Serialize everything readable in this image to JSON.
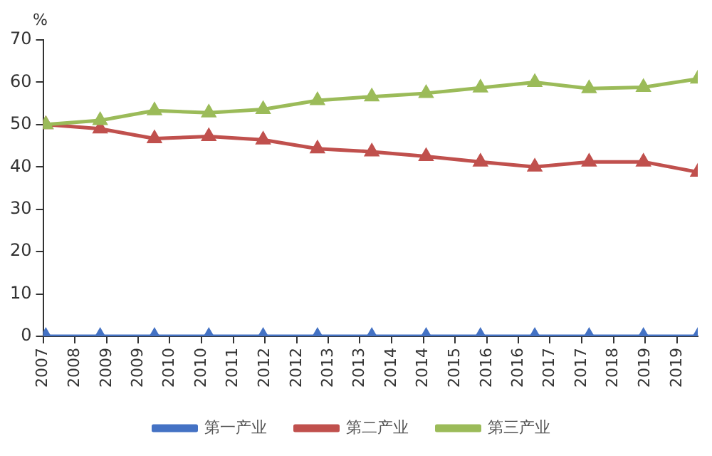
{
  "chart_data": {
    "type": "line",
    "ylabel": "%",
    "x": [
      2007.5,
      2008.5,
      2009.5,
      2010.5,
      2011.5,
      2012.5,
      2013.5,
      2014.5,
      2015.5,
      2016.5,
      2017.5,
      2018.5,
      2019.5
    ],
    "xlim": [
      2007.45,
      2019.5
    ],
    "xticks": [
      {
        "value": 2007.45,
        "label": "2007"
      },
      {
        "value": 2008.03,
        "label": "2008"
      },
      {
        "value": 2008.62,
        "label": "2009"
      },
      {
        "value": 2009.2,
        "label": "2009"
      },
      {
        "value": 2009.78,
        "label": "2010"
      },
      {
        "value": 2010.37,
        "label": "2010"
      },
      {
        "value": 2010.95,
        "label": "2011"
      },
      {
        "value": 2011.53,
        "label": "2012"
      },
      {
        "value": 2012.12,
        "label": "2012"
      },
      {
        "value": 2012.7,
        "label": "2013"
      },
      {
        "value": 2013.28,
        "label": "2013"
      },
      {
        "value": 2013.87,
        "label": "2014"
      },
      {
        "value": 2014.45,
        "label": "2014"
      },
      {
        "value": 2015.03,
        "label": "2015"
      },
      {
        "value": 2015.62,
        "label": "2016"
      },
      {
        "value": 2016.2,
        "label": "2016"
      },
      {
        "value": 2016.78,
        "label": "2017"
      },
      {
        "value": 2017.37,
        "label": "2017"
      },
      {
        "value": 2017.95,
        "label": "2018"
      },
      {
        "value": 2018.53,
        "label": "2019"
      },
      {
        "value": 2019.12,
        "label": "2019"
      }
    ],
    "ylim": [
      0,
      70
    ],
    "yticks": [
      0,
      10,
      20,
      30,
      40,
      50,
      60,
      70
    ],
    "grid": false,
    "legend": "bottom",
    "marker": "triangle",
    "line_style": "solid",
    "series": [
      {
        "name": "第一产业",
        "color": "#4472c4",
        "values": [
          0,
          0,
          0,
          0,
          0,
          0,
          0,
          0,
          0,
          0,
          0,
          0,
          0
        ]
      },
      {
        "name": "第二产业",
        "color": "#c0504d",
        "values": [
          50,
          49,
          46.7,
          47.2,
          46.4,
          44.3,
          43.6,
          42.5,
          41.2,
          40,
          41.2,
          41.2,
          38.8
        ]
      },
      {
        "name": "第三产业",
        "color": "#9bbb59",
        "values": [
          50,
          51,
          53.3,
          52.8,
          53.6,
          55.7,
          56.6,
          57.4,
          58.7,
          60,
          58.5,
          58.8,
          60.8
        ]
      }
    ]
  }
}
